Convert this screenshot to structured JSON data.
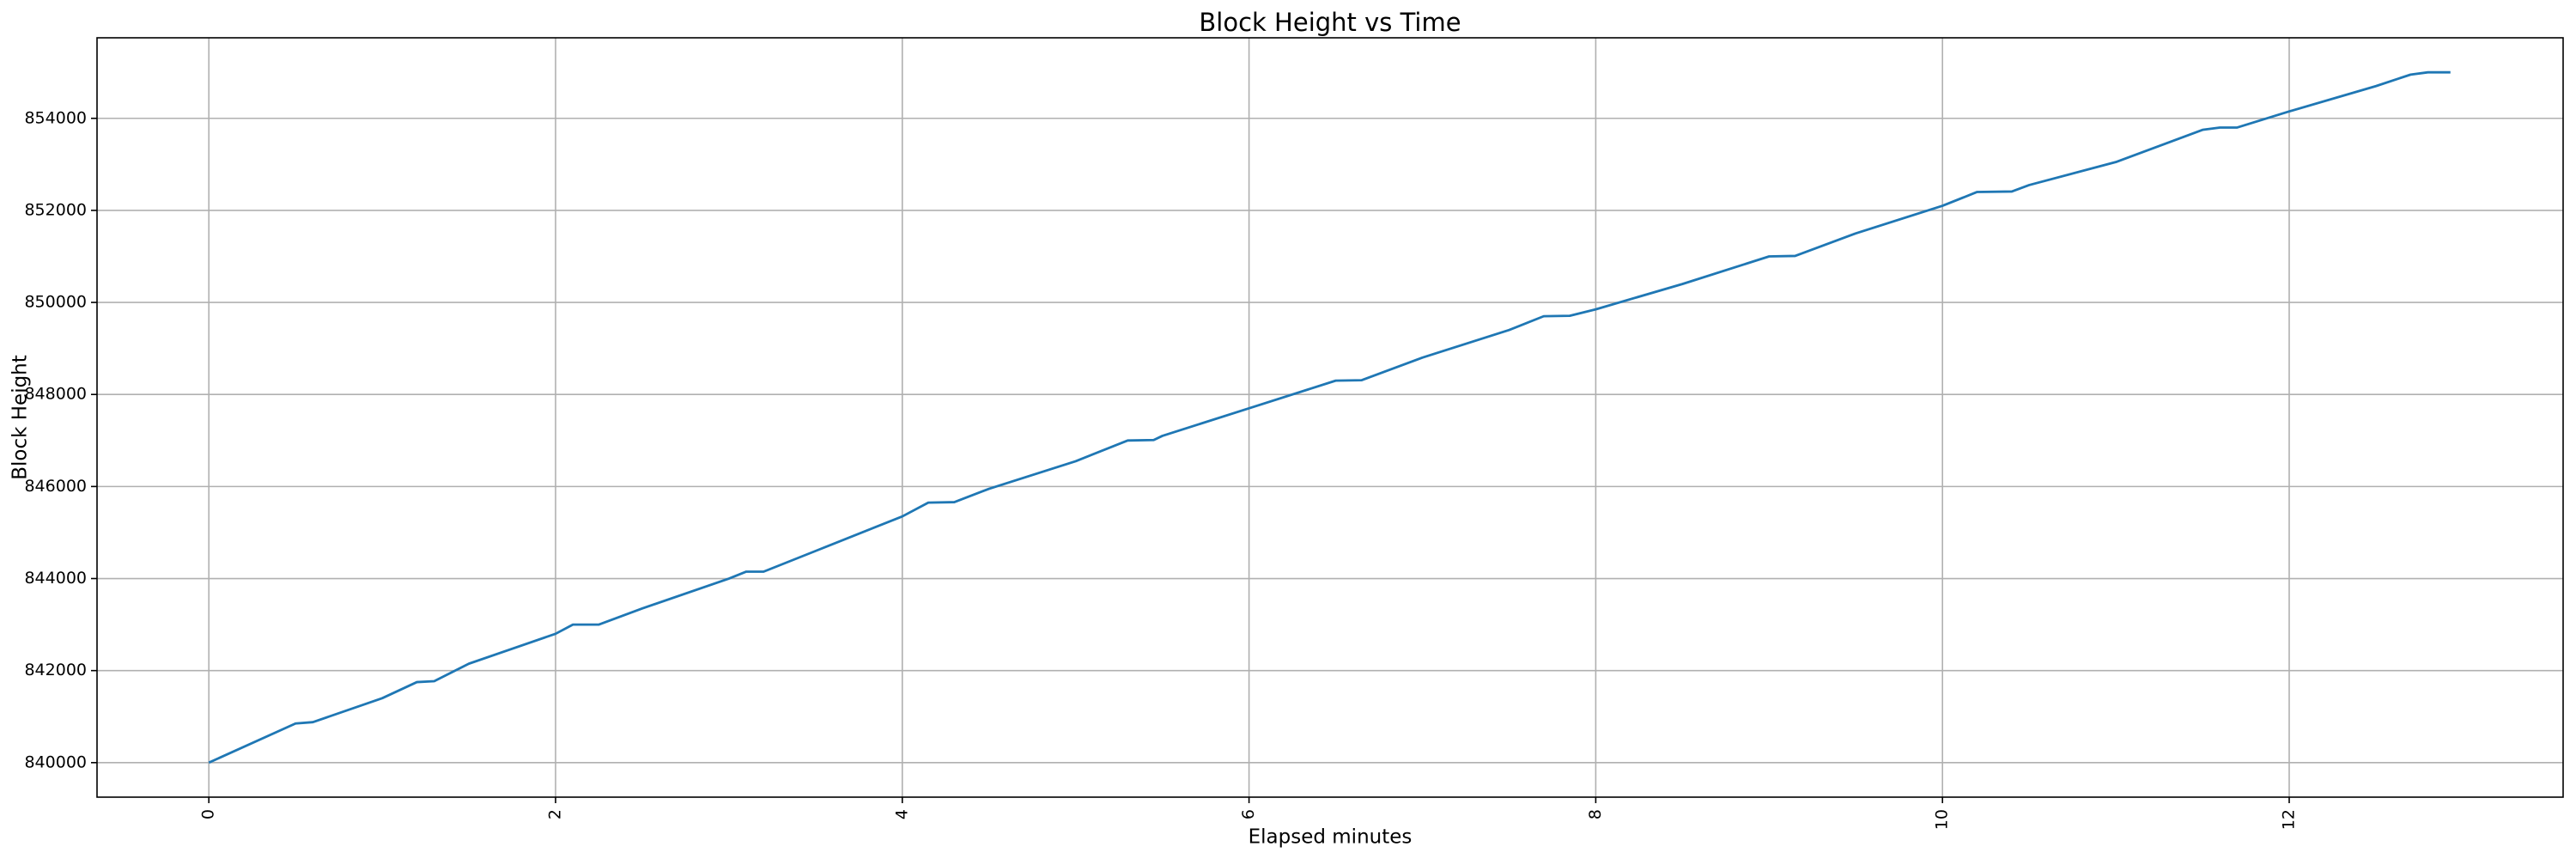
{
  "chart_data": {
    "type": "line",
    "title": "Block Height vs Time",
    "xlabel": "Elapsed minutes",
    "ylabel": "Block Height",
    "x": [
      0,
      0.5,
      0.6,
      1.0,
      1.2,
      1.3,
      1.5,
      2.0,
      2.1,
      2.25,
      2.5,
      3.0,
      3.1,
      3.2,
      3.5,
      4.0,
      4.15,
      4.3,
      4.5,
      5.0,
      5.3,
      5.45,
      5.5,
      6.0,
      6.5,
      6.65,
      7.0,
      7.5,
      7.7,
      7.85,
      8.0,
      8.5,
      9.0,
      9.15,
      9.5,
      10.0,
      10.2,
      10.4,
      10.5,
      11.0,
      11.5,
      11.6,
      11.7,
      12.0,
      12.5,
      12.7,
      12.8,
      12.93
    ],
    "series": [
      {
        "name": "Block Height",
        "color": "#1f77b4",
        "values": [
          840000,
          840850,
          840880,
          841400,
          841750,
          841770,
          842150,
          842800,
          843000,
          843000,
          843350,
          844000,
          844150,
          844150,
          844600,
          845350,
          845650,
          845660,
          845950,
          846550,
          847000,
          847010,
          847100,
          847700,
          848300,
          848310,
          848800,
          849400,
          849700,
          849710,
          849850,
          850400,
          851000,
          851010,
          851500,
          852100,
          852400,
          852410,
          852550,
          853050,
          853750,
          853800,
          853800,
          854150,
          854700,
          854950,
          855000,
          855000
        ]
      }
    ],
    "xlim": [
      -0.645,
      13.58
    ],
    "ylim": [
      839250,
      855750
    ],
    "xticks": [
      0,
      2,
      4,
      6,
      8,
      10,
      12
    ],
    "yticks": [
      840000,
      842000,
      844000,
      846000,
      848000,
      850000,
      852000,
      854000
    ],
    "grid": true
  }
}
